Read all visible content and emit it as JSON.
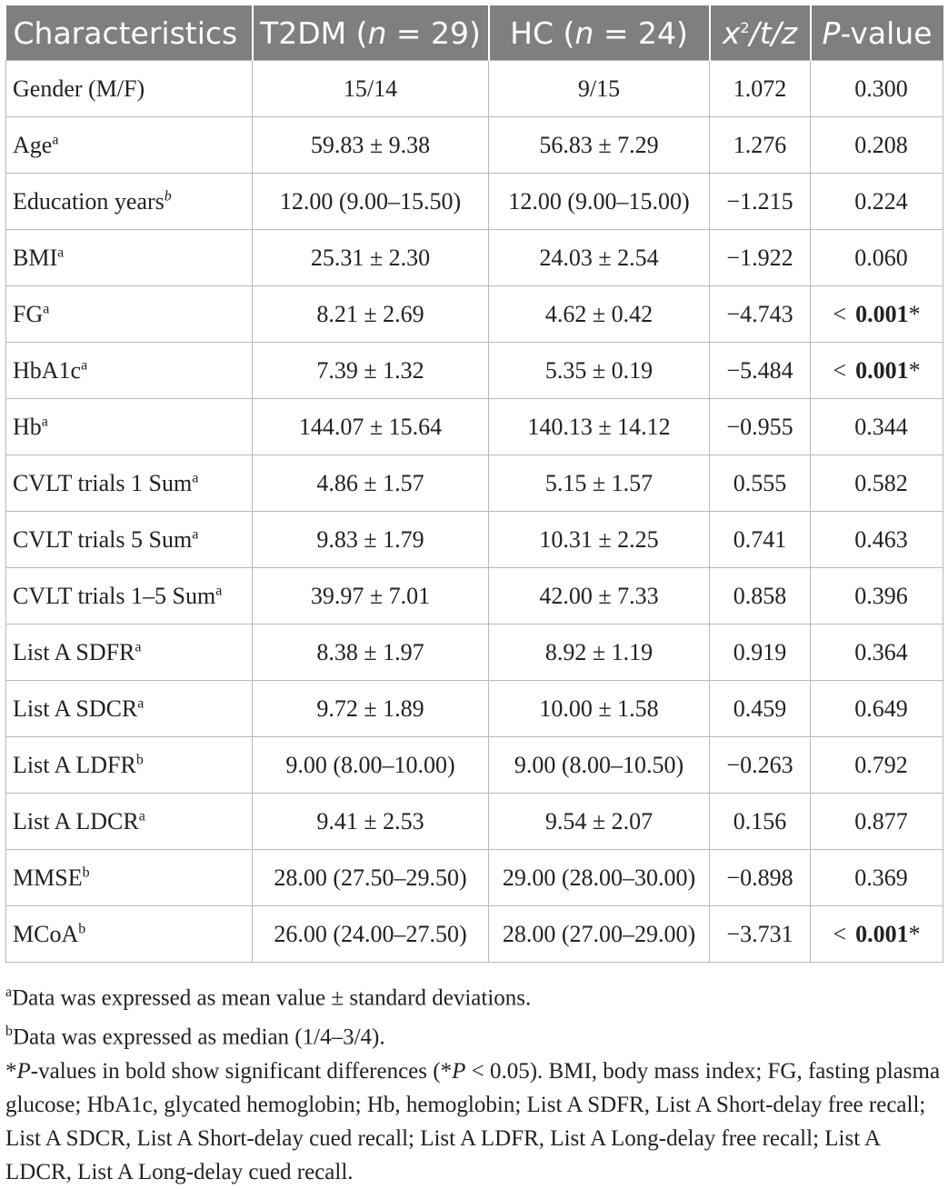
{
  "table": {
    "headers": {
      "characteristics": "Characteristics",
      "t2dm_prefix": "T2DM (",
      "t2dm_n": "n",
      "t2dm_suffix": " = 29)",
      "hc_prefix": "HC (",
      "hc_n": "n",
      "hc_suffix": " = 24)",
      "stat_x": "x",
      "stat_sup": "2",
      "stat_rest": "/t/z",
      "p_italic": "P",
      "p_rest": "-value"
    },
    "rows": [
      {
        "label": "Gender (M/F)",
        "mark": "",
        "t2dm": "15/14",
        "hc": "9/15",
        "stat": "1.072",
        "p_lt": "",
        "p": "0.300",
        "p_star": ""
      },
      {
        "label": "Age",
        "mark": "a",
        "t2dm": "59.83 ± 9.38",
        "hc": "56.83 ± 7.29",
        "stat": "1.276",
        "p_lt": "",
        "p": "0.208",
        "p_star": ""
      },
      {
        "label": "Education years",
        "mark": "b",
        "t2dm": "12.00 (9.00–15.50)",
        "hc": "12.00 (9.00–15.00)",
        "stat": "−1.215",
        "p_lt": "",
        "p": "0.224",
        "p_star": ""
      },
      {
        "label": "BMI",
        "mark": "a",
        "t2dm": "25.31 ± 2.30",
        "hc": "24.03 ± 2.54",
        "stat": "−1.922",
        "p_lt": "",
        "p": "0.060",
        "p_star": ""
      },
      {
        "label": "FG",
        "mark": "a",
        "t2dm": "8.21 ± 2.69",
        "hc": "4.62 ± 0.42",
        "stat": "−4.743",
        "p_lt": "<",
        "p": "0.001",
        "p_star": "*"
      },
      {
        "label": "HbA1c",
        "mark": "a",
        "t2dm": "7.39 ± 1.32",
        "hc": "5.35 ± 0.19",
        "stat": "−5.484",
        "p_lt": "<",
        "p": "0.001",
        "p_star": "*"
      },
      {
        "label": "Hb",
        "mark": "a",
        "t2dm": "144.07 ± 15.64",
        "hc": "140.13 ± 14.12",
        "stat": "−0.955",
        "p_lt": "",
        "p": "0.344",
        "p_star": ""
      },
      {
        "label": "CVLT trials 1 Sum",
        "mark": "a",
        "t2dm": "4.86 ± 1.57",
        "hc": "5.15 ± 1.57",
        "stat": "0.555",
        "p_lt": "",
        "p": "0.582",
        "p_star": ""
      },
      {
        "label": "CVLT trials 5 Sum",
        "mark": "a",
        "t2dm": "9.83 ± 1.79",
        "hc": "10.31 ± 2.25",
        "stat": "0.741",
        "p_lt": "",
        "p": "0.463",
        "p_star": ""
      },
      {
        "label": "CVLT trials 1–5 Sum",
        "mark": "a",
        "t2dm": "39.97 ± 7.01",
        "hc": "42.00 ± 7.33",
        "stat": "0.858",
        "p_lt": "",
        "p": "0.396",
        "p_star": ""
      },
      {
        "label": "List A SDFR",
        "mark": "a",
        "t2dm": "8.38 ± 1.97",
        "hc": "8.92 ± 1.19",
        "stat": "0.919",
        "p_lt": "",
        "p": "0.364",
        "p_star": ""
      },
      {
        "label": "List A SDCR",
        "mark": "a",
        "t2dm": "9.72 ± 1.89",
        "hc": "10.00 ± 1.58",
        "stat": "0.459",
        "p_lt": "",
        "p": "0.649",
        "p_star": ""
      },
      {
        "label": "List A LDFR",
        "mark": "b",
        "t2dm": "9.00 (8.00–10.00)",
        "hc": "9.00 (8.00–10.50)",
        "stat": "−0.263",
        "p_lt": "",
        "p": "0.792",
        "p_star": ""
      },
      {
        "label": "List A LDCR",
        "mark": "a",
        "t2dm": "9.41 ± 2.53",
        "hc": "9.54 ± 2.07",
        "stat": "0.156",
        "p_lt": "",
        "p": "0.877",
        "p_star": ""
      },
      {
        "label": "MMSE",
        "mark": "b",
        "t2dm": "28.00 (27.50–29.50)",
        "hc": "29.00 (28.00–30.00)",
        "stat": "−0.898",
        "p_lt": "",
        "p": "0.369",
        "p_star": ""
      },
      {
        "label": "MCoA",
        "mark": "b",
        "t2dm": "26.00 (24.00–27.50)",
        "hc": "28.00 (27.00–29.00)",
        "stat": "−3.731",
        "p_lt": "<",
        "p": "0.001",
        "p_star": "*"
      }
    ]
  },
  "notes": {
    "a_mark": "a",
    "a_text": "Data was expressed as mean value ± standard deviations.",
    "b_mark": "b",
    "b_text": "Data was expressed as median (1/4–3/4).",
    "star_prefix": "*",
    "star_p1": "P",
    "star_mid": "-values in bold show significant differences (*",
    "star_p2": "P",
    "star_rest": " < 0.05). BMI, body mass index; FG, fasting plasma glucose; HbA1c, glycated hemoglobin; Hb, hemoglobin; List A SDFR, List A Short-delay free recall; List A SDCR, List A Short-delay cued recall; List A LDFR, List A Long-delay free recall; List A LDCR, List A Long-delay cued recall."
  }
}
